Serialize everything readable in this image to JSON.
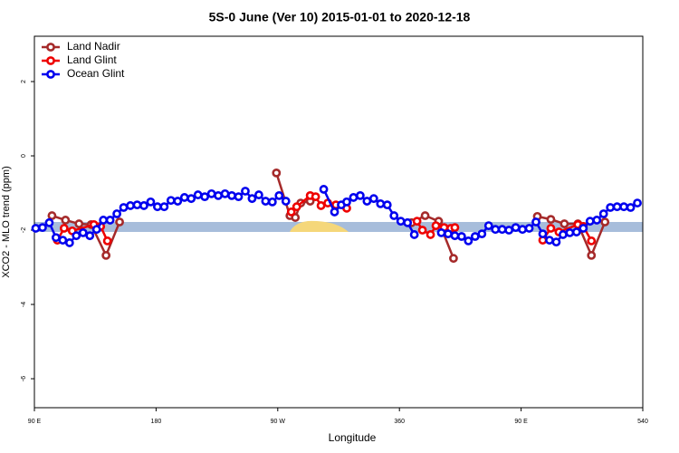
{
  "chart_data": {
    "type": "line",
    "title": "5S-0 June (Ver 10)   2015-01-01 to 2020-12-18",
    "x_label": "Longitude",
    "y_label": "XCO2 - MLO trend (ppm)",
    "xlim": [
      90,
      540
    ],
    "ylim": [
      -6.78,
      3.22
    ],
    "xticks": [
      {
        "value": 90,
        "label": "90 E"
      },
      180,
      {
        "value": 270,
        "label": "90 W"
      },
      360,
      {
        "value": 450,
        "label": "90 E"
      },
      540
    ],
    "yticks": [
      -6,
      -4,
      -2,
      0,
      2
    ],
    "legend": "top-left",
    "series": [
      {
        "name": "Land Nadir",
        "color": "#a52a2a",
        "x": [
          103,
          113,
          123,
          132,
          143,
          153,
          null,
          269,
          279,
          283,
          287,
          294,
          null,
          369,
          379,
          389,
          400,
          null,
          462,
          472,
          482,
          492,
          502,
          512
        ],
        "values": [
          -1.61,
          -1.73,
          -1.83,
          -1.85,
          -2.68,
          -1.78,
          null,
          -0.46,
          -1.61,
          -1.66,
          -1.27,
          -1.22,
          null,
          -1.8,
          -1.61,
          -1.76,
          -2.76,
          null,
          -1.63,
          -1.71,
          -1.83,
          -1.83,
          -2.68,
          -1.78
        ]
      },
      {
        "name": "Land Glint",
        "color": "#ee0000",
        "x": [
          107,
          112,
          118,
          134,
          139,
          144,
          null,
          280,
          284,
          294,
          298,
          302,
          307,
          313,
          321,
          null,
          373,
          377,
          383,
          387,
          393,
          398,
          401,
          null,
          466,
          472,
          478,
          492,
          496,
          502
        ],
        "values": [
          -2.27,
          -1.95,
          -2.02,
          -1.85,
          -1.9,
          -2.29,
          null,
          -1.51,
          -1.37,
          -1.07,
          -1.1,
          -1.34,
          -1.27,
          -1.32,
          -1.41,
          null,
          -1.76,
          -2.0,
          -2.12,
          -1.88,
          -1.93,
          -1.95,
          -1.93,
          null,
          -2.27,
          -1.95,
          -2.05,
          -1.85,
          -1.9,
          -2.29
        ]
      },
      {
        "name": "Ocean Glint",
        "color": "#0000ee",
        "x": [
          91,
          96,
          101,
          106,
          111,
          116,
          121,
          126,
          131,
          136,
          141,
          146,
          151,
          156,
          161,
          166,
          171,
          176,
          181,
          186,
          191,
          196,
          201,
          206,
          211,
          216,
          221,
          226,
          231,
          236,
          241,
          246,
          251,
          256,
          261,
          266,
          271,
          276,
          null,
          304,
          312,
          317,
          321,
          326,
          331,
          336,
          341,
          346,
          351,
          356,
          361,
          366,
          371,
          null,
          391,
          396,
          401,
          406,
          411,
          416,
          421,
          426,
          431,
          436,
          441,
          446,
          451,
          456,
          461,
          466,
          471,
          476,
          481,
          486,
          491,
          496,
          501,
          506,
          511,
          516,
          521,
          526,
          531,
          536
        ],
        "values": [
          -1.95,
          -1.93,
          -1.8,
          -2.2,
          -2.27,
          -2.34,
          -2.15,
          -2.07,
          -2.15,
          -1.98,
          -1.73,
          -1.73,
          -1.56,
          -1.39,
          -1.34,
          -1.32,
          -1.34,
          -1.24,
          -1.37,
          -1.37,
          -1.2,
          -1.22,
          -1.12,
          -1.15,
          -1.05,
          -1.1,
          -1.02,
          -1.07,
          -1.02,
          -1.07,
          -1.1,
          -0.95,
          -1.15,
          -1.05,
          -1.22,
          -1.24,
          -1.07,
          -1.22,
          null,
          -0.9,
          -1.51,
          -1.32,
          -1.24,
          -1.12,
          -1.07,
          -1.22,
          -1.15,
          -1.29,
          -1.32,
          -1.61,
          -1.76,
          -1.8,
          -2.12,
          null,
          -2.07,
          -2.1,
          -2.15,
          -2.17,
          -2.29,
          -2.17,
          -2.1,
          -1.88,
          -1.98,
          -1.98,
          -2.0,
          -1.93,
          -1.98,
          -1.95,
          -1.78,
          -2.1,
          -2.27,
          -2.32,
          -2.12,
          -2.07,
          -2.05,
          -1.95,
          -1.76,
          -1.73,
          -1.56,
          -1.39,
          -1.37,
          -1.37,
          -1.39,
          -1.27
        ]
      }
    ]
  }
}
